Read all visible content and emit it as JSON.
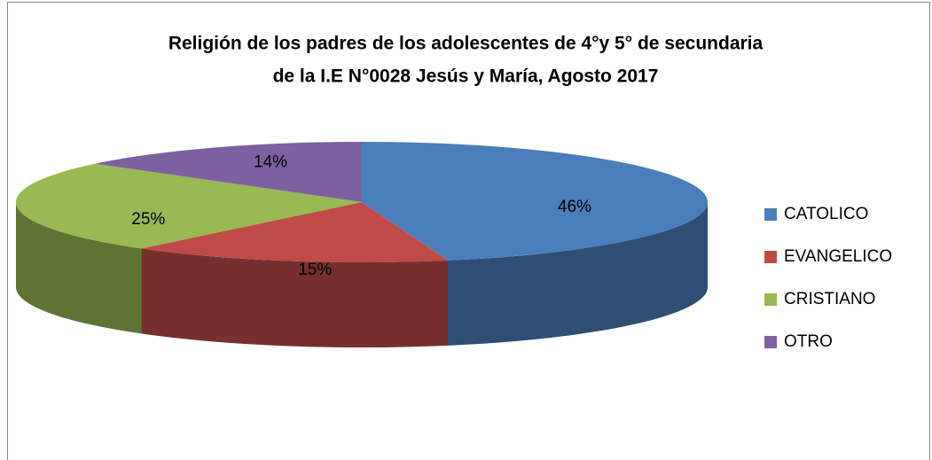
{
  "chart_data": {
    "type": "pie3d",
    "title": [
      "Religión de los padres de los adolescentes de 4°y 5° de secundaria",
      "de la I.E N°0028 Jesús y María, Agosto 2017"
    ],
    "categories": [
      "CATOLICO",
      "EVANGELICO",
      "CRISTIANO",
      "OTRO"
    ],
    "values": [
      46,
      15,
      25,
      14
    ],
    "value_labels": [
      "46%",
      "15%",
      "25%",
      "14%"
    ],
    "colors": [
      "#4a7ebb",
      "#be4b48",
      "#98b954",
      "#7d60a0"
    ],
    "legend": "right"
  }
}
